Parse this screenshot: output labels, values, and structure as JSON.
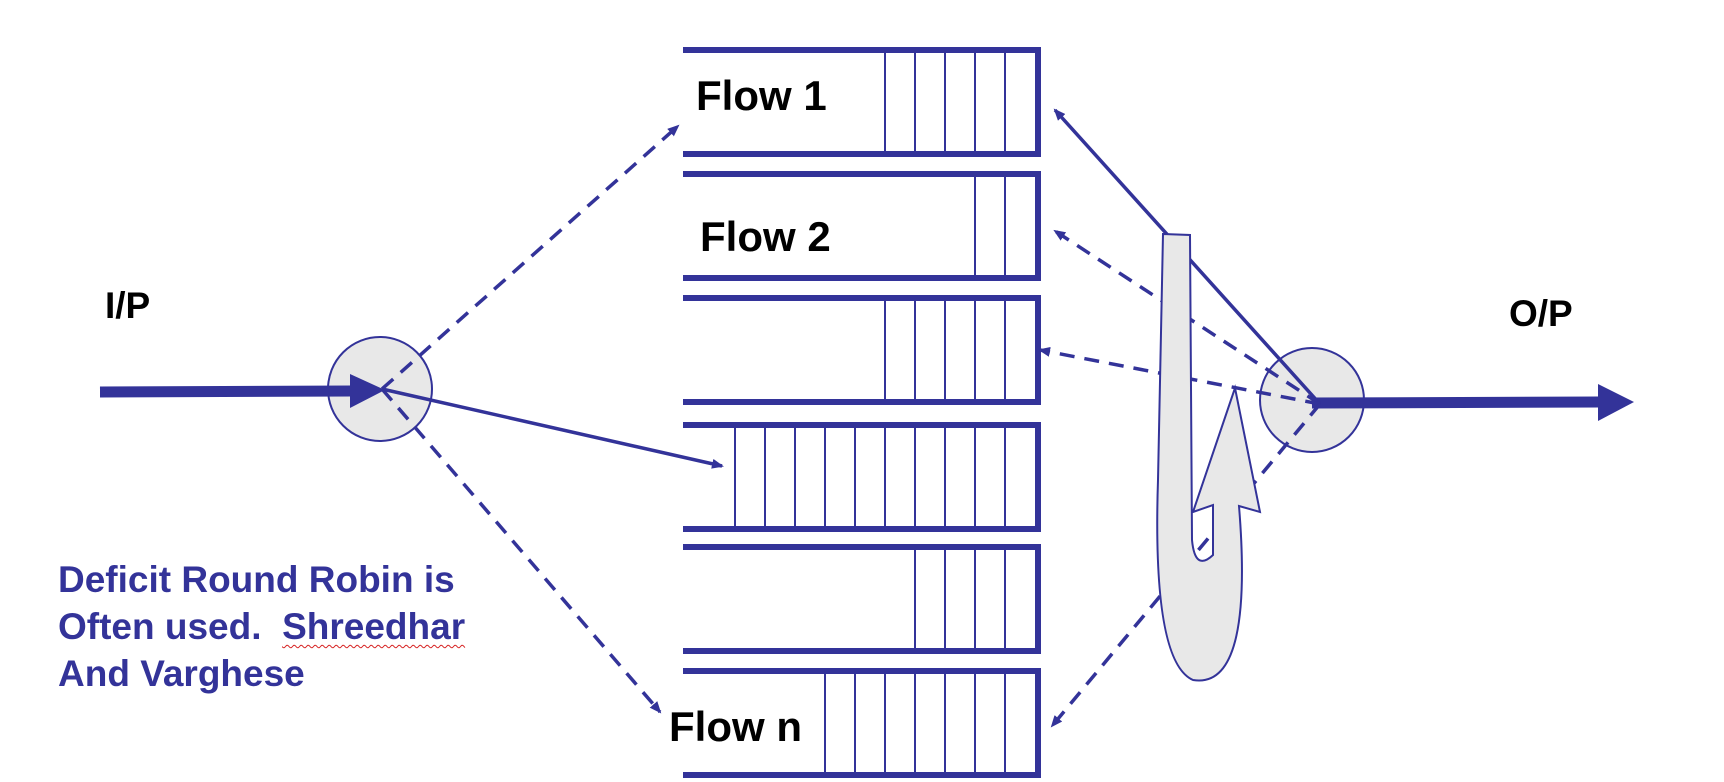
{
  "labels": {
    "input": "I/P",
    "output": "O/P",
    "flow1": "Flow 1",
    "flow2": "Flow 2",
    "flown": "Flow n"
  },
  "note": {
    "line1": "Deficit Round Robin is",
    "line2a": "Often used.  ",
    "line2b": "Shreedhar",
    "line3": "And Varghese"
  },
  "queues": [
    {
      "label": "Flow 1",
      "packets": 5
    },
    {
      "label": "Flow 2",
      "packets": 2
    },
    {
      "label": "",
      "packets": 5
    },
    {
      "label": "",
      "packets": 10
    },
    {
      "label": "",
      "packets": 4
    },
    {
      "label": "Flow n",
      "packets": 7
    }
  ],
  "colors": {
    "primary": "#333399",
    "node_fill": "#e8e8e8",
    "text": "#000000",
    "squiggle": "#d62020"
  }
}
